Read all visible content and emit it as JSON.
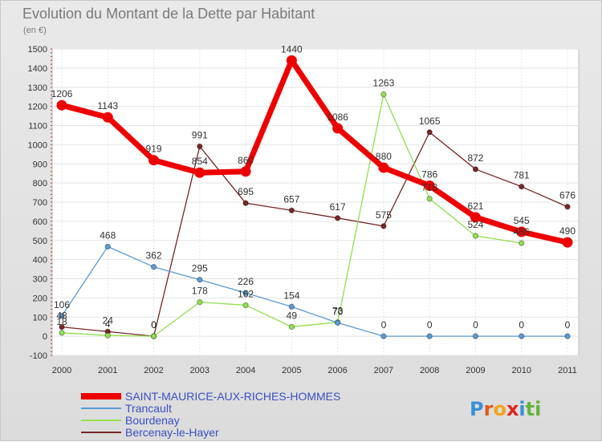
{
  "chart_data": {
    "type": "line",
    "title": "Evolution du Montant de la Dette par Habitant",
    "subtitle": "(en €)",
    "xlabel": "",
    "ylabel": "",
    "ylim": [
      -100,
      1500
    ],
    "yticks": [
      "-100",
      "0",
      "100",
      "200",
      "300",
      "400",
      "500",
      "600",
      "700",
      "800",
      "900",
      "1000",
      "1100",
      "1200",
      "1300",
      "1400",
      "1500"
    ],
    "categories": [
      "2000",
      "2001",
      "2002",
      "2003",
      "2004",
      "2005",
      "2006",
      "2007",
      "2008",
      "2009",
      "2010",
      "2011"
    ],
    "grid": true,
    "legend_position": "bottom-left",
    "series": [
      {
        "name": "SAINT-MAURICE-AUX-RICHES-HOMMES",
        "color": "#ee0000",
        "values": [
          1206,
          1143,
          919,
          854,
          860,
          1440,
          1086,
          880,
          786,
          621,
          545,
          490
        ]
      },
      {
        "name": "Trancault",
        "color": "#5b9bd5",
        "values": [
          106,
          468,
          362,
          295,
          226,
          154,
          70,
          0,
          0,
          0,
          0,
          0
        ]
      },
      {
        "name": "Bourdenay",
        "color": "#90e050",
        "values": [
          18,
          4,
          0,
          178,
          162,
          49,
          73,
          1263,
          718,
          524,
          486,
          null
        ]
      },
      {
        "name": "Bercenay-le-Hayer",
        "color": "#7a2626",
        "values": [
          48,
          24,
          0,
          991,
          695,
          657,
          617,
          575,
          1065,
          872,
          781,
          676
        ]
      }
    ],
    "labels": [
      {
        "series": 0,
        "values": [
          "1206",
          "1143",
          "919",
          "854",
          "860",
          "1440",
          "1086",
          "880",
          "786",
          "621",
          "545",
          "490"
        ]
      },
      {
        "series": 1,
        "values": [
          "106",
          "468",
          "362",
          "295",
          "226",
          "154",
          "70",
          "0",
          "0",
          "0",
          "0",
          "0"
        ]
      },
      {
        "series": 2,
        "values": [
          "18",
          "4",
          "0",
          "178",
          "162",
          "49",
          "73",
          "1263",
          "718",
          "524",
          "486",
          ""
        ]
      },
      {
        "series": 3,
        "values": [
          "48",
          "24",
          "0",
          "991",
          "695",
          "657",
          "617",
          "575",
          "1065",
          "872",
          "781",
          "676"
        ]
      }
    ]
  },
  "logo": {
    "letters": [
      "P",
      "r",
      "o",
      "x",
      "i",
      "t",
      "i"
    ],
    "colors": [
      "#3a8fd8",
      "#e05a1c",
      "#f2a51a",
      "#e0241c",
      "#3a8fd8",
      "#64b43c",
      "#64b43c"
    ]
  }
}
